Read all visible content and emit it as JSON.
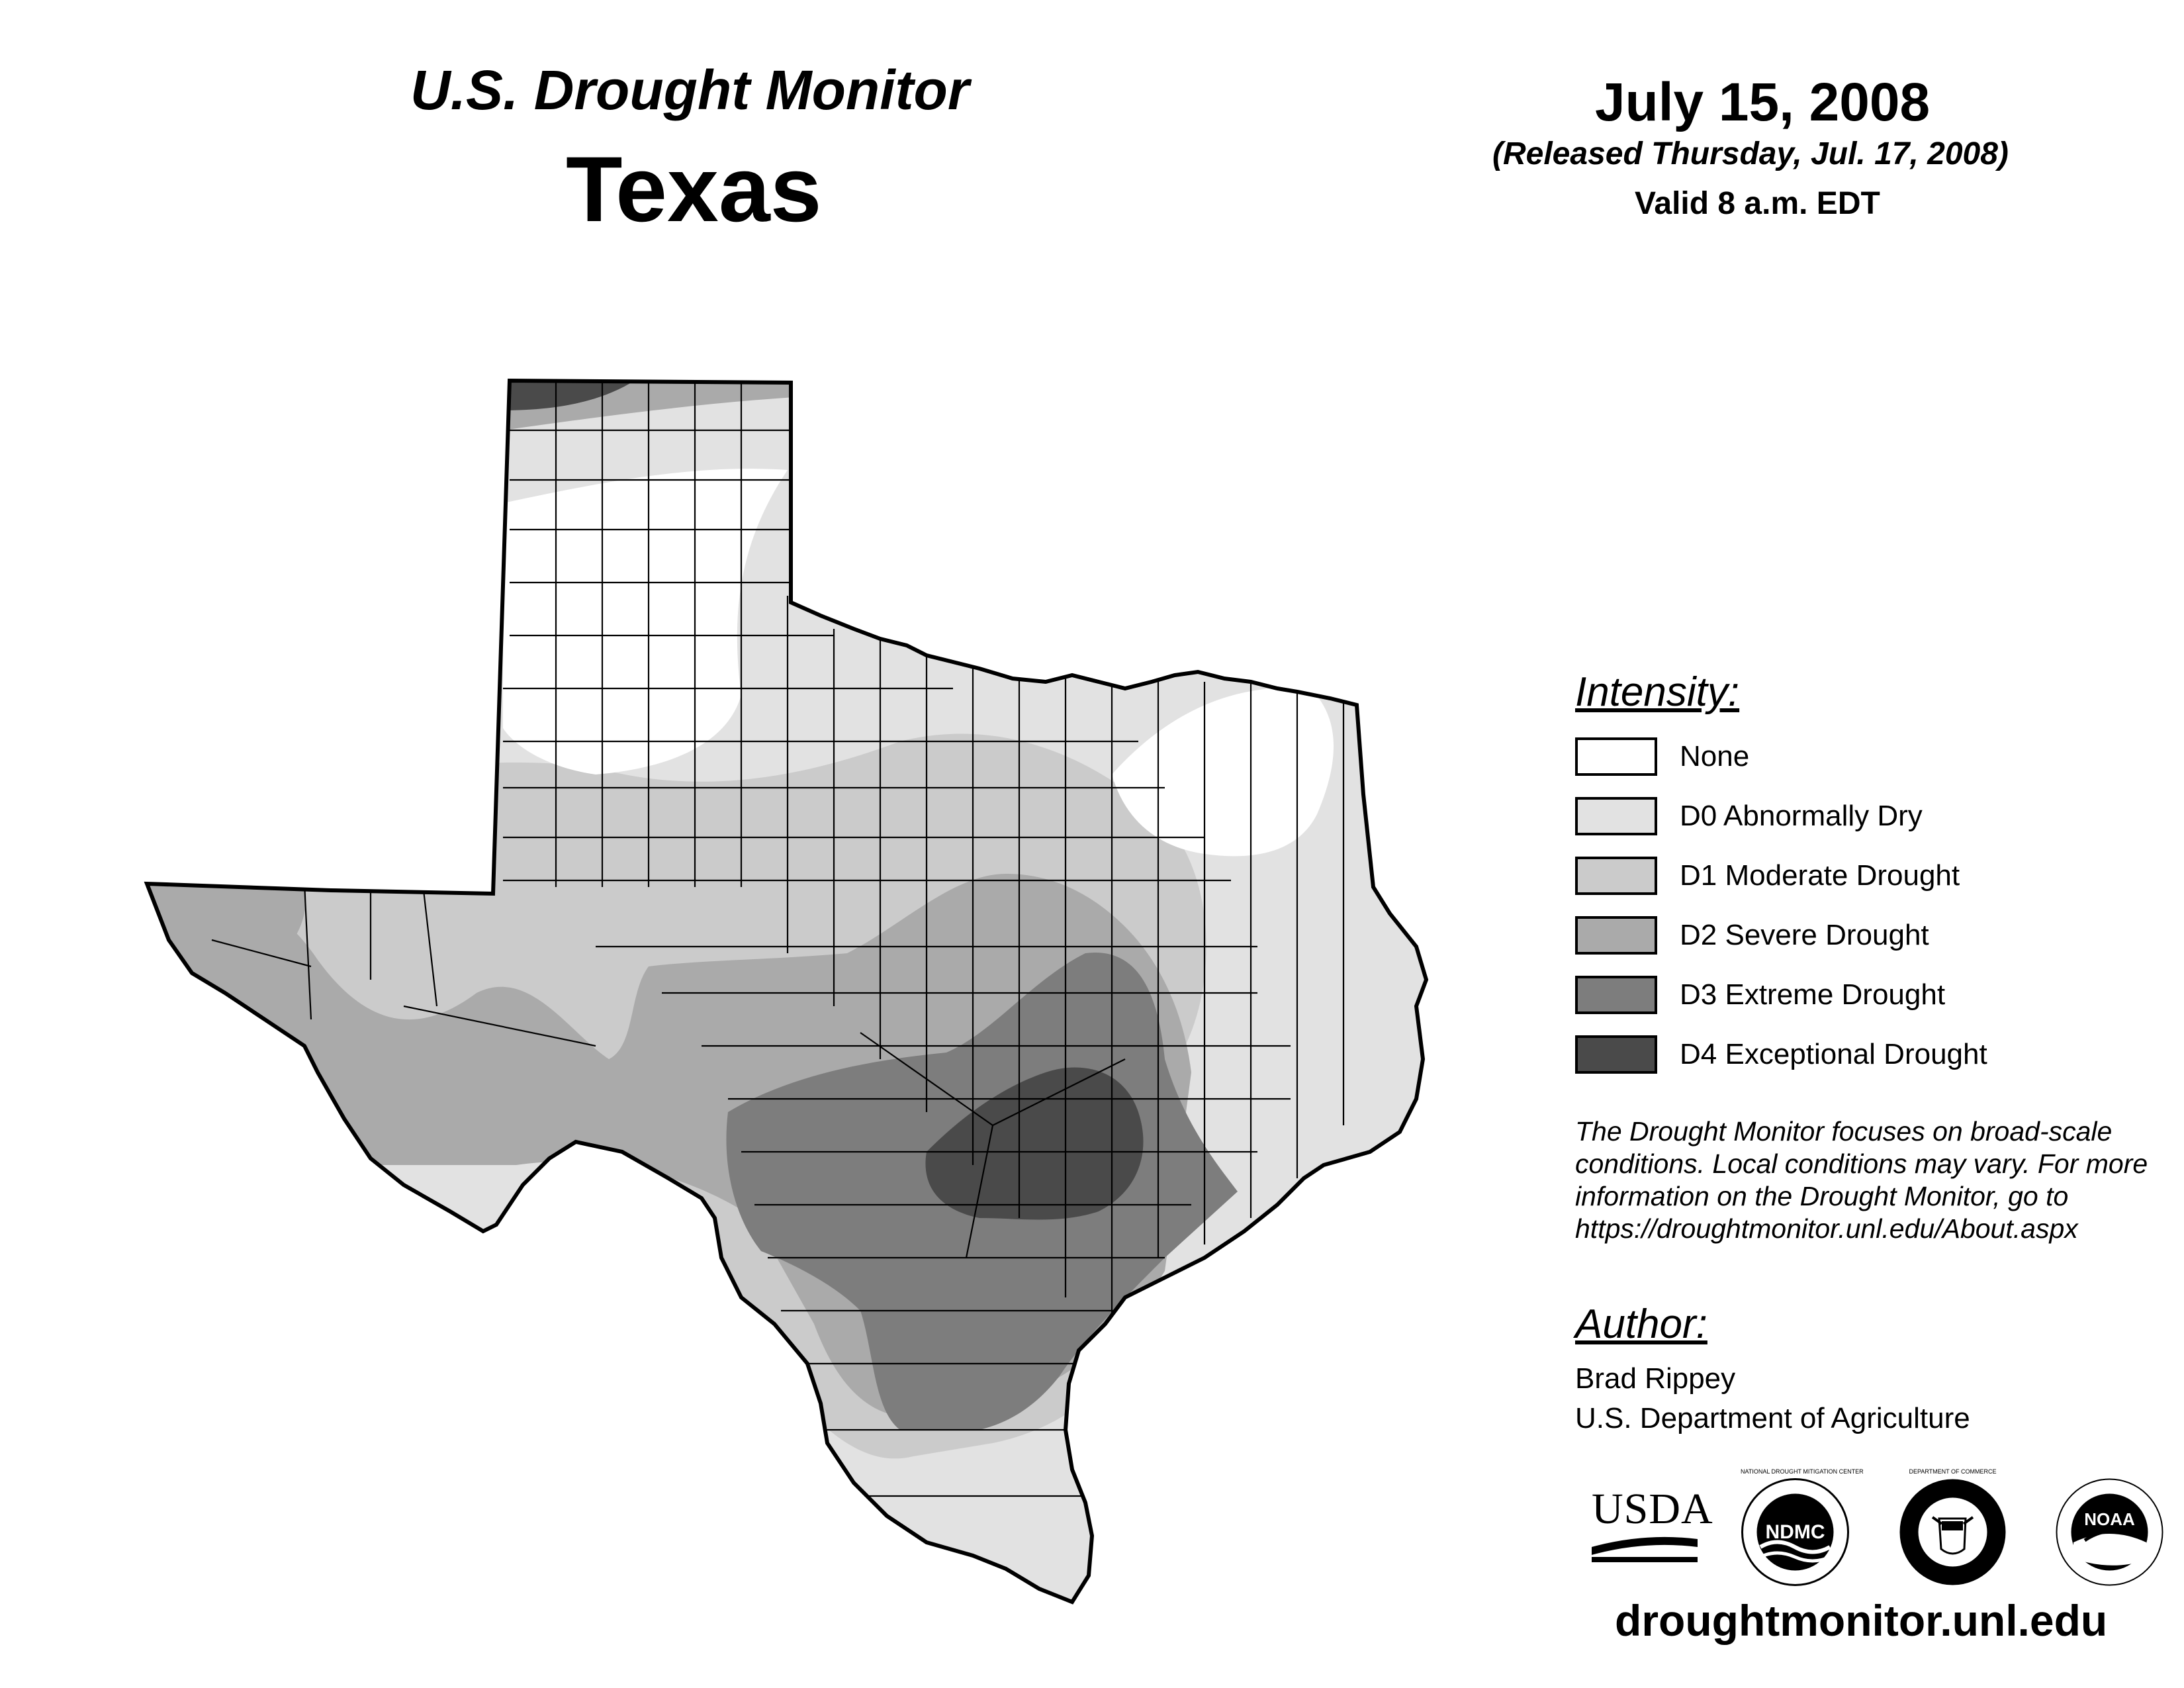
{
  "header": {
    "title": "U.S. Drought Monitor",
    "state": "Texas",
    "date": "July 15, 2008",
    "released": "(Released Thursday, Jul. 17, 2008)",
    "valid": "Valid 8 a.m. EDT"
  },
  "legend": {
    "title": "Intensity:",
    "items": [
      {
        "label": "None",
        "color": "#ffffff"
      },
      {
        "label": "D0 Abnormally Dry",
        "color": "#e2e2e2"
      },
      {
        "label": "D1 Moderate Drought",
        "color": "#cbcbcb"
      },
      {
        "label": "D2 Severe Drought",
        "color": "#aaaaaa"
      },
      {
        "label": "D3 Extreme Drought",
        "color": "#7d7d7d"
      },
      {
        "label": "D4 Exceptional Drought",
        "color": "#4a4a4a"
      }
    ]
  },
  "note": {
    "lines": [
      "The Drought Monitor focuses on broad-scale",
      "conditions. Local conditions may vary. For more",
      "information on the Drought Monitor, go to",
      "https://droughtmonitor.unl.edu/About.aspx"
    ]
  },
  "author": {
    "title": "Author:",
    "name": "Brad Rippey",
    "org": "U.S. Department of Agriculture"
  },
  "logos": {
    "usda": "USDA",
    "ndmc": "NDMC",
    "ndmc_ring": "NATIONAL DROUGHT MITIGATION CENTER",
    "commerce_ring": "DEPARTMENT OF COMMERCE",
    "noaa": "NOAA",
    "icons": [
      "usda-logo",
      "ndmc-logo",
      "commerce-seal",
      "noaa-logo"
    ]
  },
  "footer": {
    "url": "droughtmonitor.unl.edu"
  },
  "map": {
    "region": "Texas",
    "category_order": [
      "None",
      "D0",
      "D1",
      "D2",
      "D3",
      "D4"
    ]
  }
}
